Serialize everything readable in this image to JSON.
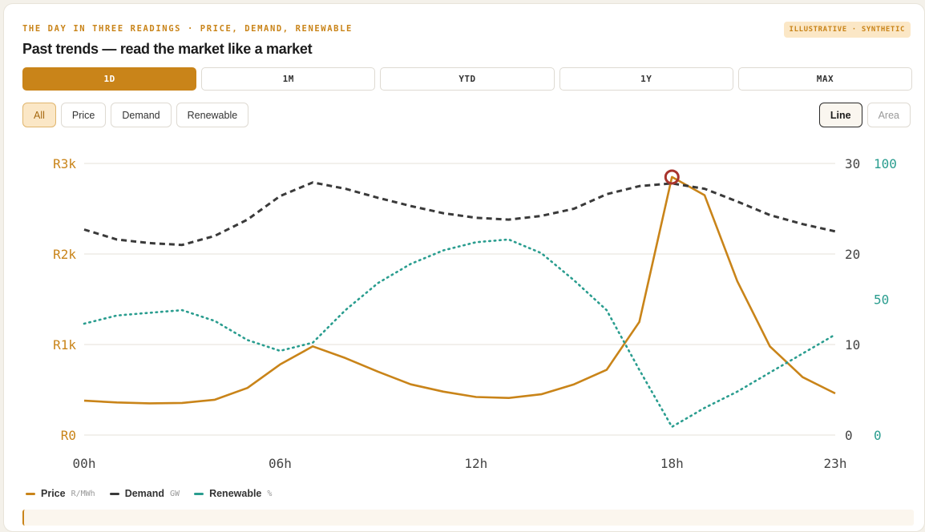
{
  "header": {
    "kicker": "THE DAY IN THREE READINGS · PRICE, DEMAND, RENEWABLE",
    "title": "Past trends — read the market like a market",
    "badge": "ILLUSTRATIVE · SYNTHETIC"
  },
  "ranges": [
    {
      "label": "1D",
      "active": true
    },
    {
      "label": "1M",
      "active": false
    },
    {
      "label": "YTD",
      "active": false
    },
    {
      "label": "1Y",
      "active": false
    },
    {
      "label": "MAX",
      "active": false
    }
  ],
  "filters": [
    {
      "label": "All",
      "active": true
    },
    {
      "label": "Price",
      "active": false
    },
    {
      "label": "Demand",
      "active": false
    },
    {
      "label": "Renewable",
      "active": false
    }
  ],
  "modes": [
    {
      "label": "Line",
      "active": true
    },
    {
      "label": "Area",
      "active": false
    }
  ],
  "colors": {
    "price": "#c98419",
    "demand": "#3a3a3a",
    "renewable": "#2a9d8f",
    "marker": "#a8342d",
    "grid": "#e4e2da"
  },
  "chart_data": {
    "type": "line",
    "x_label_ticks": [
      "00h",
      "06h",
      "12h",
      "18h",
      "23h"
    ],
    "x_tick_hours": [
      0,
      6,
      12,
      18,
      23
    ],
    "x": [
      0,
      1,
      2,
      3,
      4,
      5,
      6,
      7,
      8,
      9,
      10,
      11,
      12,
      13,
      14,
      15,
      16,
      17,
      18,
      19,
      20,
      21,
      22,
      23
    ],
    "axes": {
      "price": {
        "ylim": [
          0,
          3000
        ],
        "ticks": [
          "R0",
          "R1k",
          "R2k",
          "R3k"
        ],
        "tick_values": [
          0,
          1000,
          2000,
          3000
        ],
        "side": "left"
      },
      "demand": {
        "ylim": [
          0,
          30
        ],
        "ticks": [
          "0",
          "10",
          "20",
          "30"
        ],
        "tick_values": [
          0,
          10,
          20,
          30
        ],
        "side": "right"
      },
      "renewable": {
        "ylim": [
          0,
          100
        ],
        "ticks": [
          "0",
          "50",
          "100"
        ],
        "tick_values": [
          0,
          50,
          100
        ],
        "side": "right"
      }
    },
    "series": [
      {
        "key": "price",
        "name": "Price",
        "unit": "R/MWh",
        "axis": "price",
        "style": "solid",
        "values": [
          380,
          360,
          350,
          355,
          390,
          520,
          780,
          980,
          850,
          700,
          560,
          480,
          420,
          410,
          450,
          560,
          720,
          1250,
          2850,
          2650,
          1700,
          980,
          640,
          460
        ]
      },
      {
        "key": "demand",
        "name": "Demand",
        "unit": "GW",
        "axis": "demand",
        "style": "dashed",
        "values": [
          22.7,
          21.6,
          21.2,
          21.0,
          22.0,
          23.8,
          26.4,
          27.9,
          27.2,
          26.2,
          25.3,
          24.5,
          24.0,
          23.8,
          24.2,
          25.0,
          26.6,
          27.5,
          27.8,
          27.2,
          25.8,
          24.3,
          23.3,
          22.5
        ]
      },
      {
        "key": "renewable",
        "name": "Renewable",
        "unit": "%",
        "axis": "renewable",
        "style": "dotted",
        "values": [
          41,
          44,
          45,
          46,
          42,
          35,
          31,
          34,
          46,
          56,
          63,
          68,
          71,
          72,
          67,
          57,
          46,
          24,
          3,
          10,
          16,
          23,
          30,
          37
        ]
      }
    ],
    "highlight": {
      "series": "price",
      "hour": 18
    },
    "grid": true,
    "legend_position": "bottom-left"
  }
}
